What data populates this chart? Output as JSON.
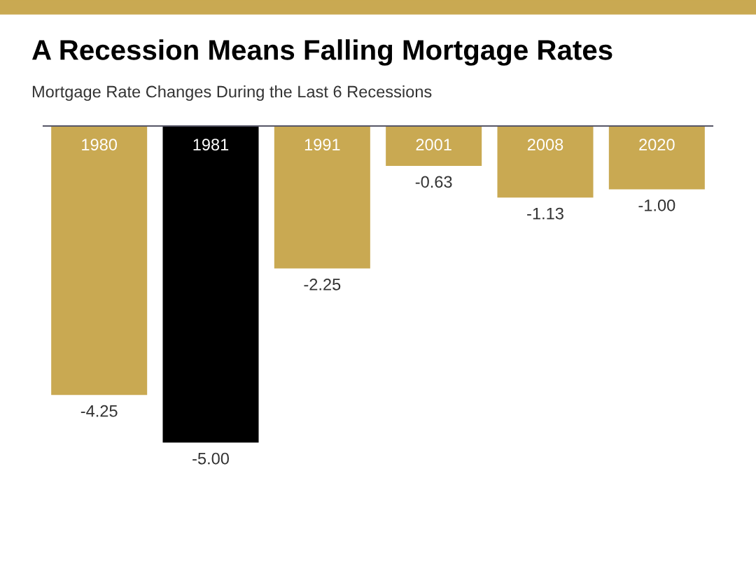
{
  "chart_data": {
    "type": "bar",
    "title": "A Recession Means Falling Mortgage Rates",
    "subtitle": "Mortgage Rate Changes During the Last 6 Recessions",
    "categories": [
      "1980",
      "1981",
      "1991",
      "2001",
      "2008",
      "2020"
    ],
    "values": [
      -4.25,
      -5.0,
      -2.25,
      -0.63,
      -1.13,
      -1.0
    ],
    "value_labels": [
      "-4.25",
      "-5.00",
      "-2.25",
      "-0.63",
      "-1.13",
      "-1.00"
    ],
    "colors": [
      "#c9a952",
      "#000000",
      "#c9a952",
      "#c9a952",
      "#c9a952",
      "#c9a952"
    ]
  }
}
